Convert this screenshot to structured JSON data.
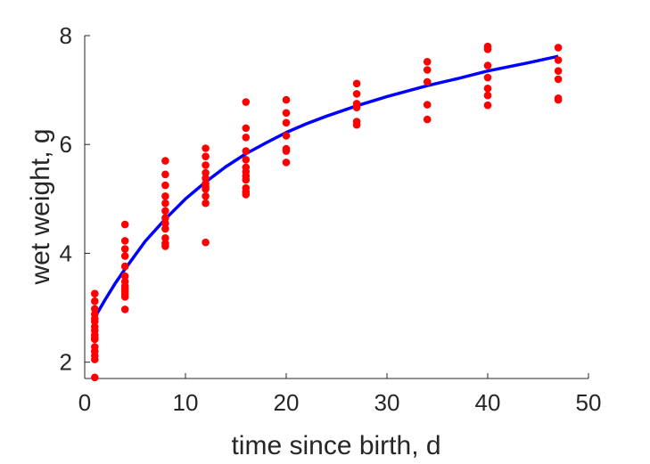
{
  "chart_data": {
    "type": "scatter",
    "xlabel": "time since birth, d",
    "ylabel": "wet weight, g",
    "xlim": [
      0,
      50
    ],
    "ylim": [
      1.7,
      8
    ],
    "xticks": [
      0,
      10,
      20,
      30,
      40,
      50
    ],
    "yticks": [
      2,
      4,
      6,
      8
    ],
    "grid": false,
    "legend": "none",
    "colors": {
      "points": "#ff0000",
      "fit": "#0000ff",
      "axis": "#262626"
    },
    "series": [
      {
        "type": "scatter",
        "x": [
          1,
          1,
          1,
          1,
          1,
          1,
          1,
          1,
          1,
          1,
          1,
          1,
          1,
          1,
          1,
          1,
          4,
          4,
          4,
          4,
          4,
          4,
          4,
          4,
          4,
          4,
          4,
          4,
          4,
          8,
          8,
          8,
          8,
          8,
          8,
          8,
          8,
          8,
          8,
          8,
          8,
          12,
          12,
          12,
          12,
          12,
          12,
          12,
          12,
          12,
          12,
          12,
          16,
          16,
          16,
          16,
          16,
          16,
          16,
          16,
          16,
          16,
          16,
          16,
          20,
          20,
          20,
          20,
          20,
          20,
          20,
          27,
          27,
          27,
          27,
          27,
          27,
          34,
          34,
          34,
          34,
          34,
          40,
          40,
          40,
          40,
          40,
          40,
          40,
          47,
          47,
          47,
          47,
          47,
          47
        ],
        "y": [
          3.26,
          3.12,
          2.98,
          2.88,
          2.8,
          2.75,
          2.65,
          2.58,
          2.5,
          2.45,
          2.42,
          2.28,
          2.2,
          2.12,
          2.05,
          1.72,
          4.53,
          4.23,
          4.08,
          3.95,
          3.76,
          3.58,
          3.48,
          3.4,
          3.35,
          3.3,
          3.25,
          3.2,
          2.97,
          5.7,
          5.45,
          5.25,
          5.05,
          4.92,
          4.78,
          4.65,
          4.55,
          4.45,
          4.28,
          4.18,
          4.13,
          5.93,
          5.78,
          5.62,
          5.48,
          5.38,
          5.28,
          5.22,
          5.18,
          5.05,
          4.92,
          4.2,
          6.78,
          6.3,
          6.13,
          5.88,
          5.72,
          5.58,
          5.5,
          5.42,
          5.35,
          5.2,
          5.13,
          5.08,
          6.82,
          6.58,
          6.4,
          6.16,
          5.92,
          5.88,
          5.67,
          7.12,
          6.93,
          6.75,
          6.68,
          6.42,
          6.36,
          7.52,
          7.37,
          7.15,
          6.73,
          6.46,
          7.8,
          7.75,
          7.45,
          7.23,
          7.03,
          6.9,
          6.72,
          7.78,
          7.55,
          7.35,
          7.2,
          6.85,
          6.82
        ]
      },
      {
        "type": "line",
        "x": [
          1,
          2,
          3,
          4,
          6,
          8,
          10,
          12,
          14,
          16,
          18,
          20,
          22,
          24,
          27,
          30,
          34,
          37,
          40,
          44,
          47
        ],
        "y": [
          2.82,
          3.14,
          3.44,
          3.71,
          4.22,
          4.63,
          5.0,
          5.31,
          5.59,
          5.83,
          6.03,
          6.22,
          6.38,
          6.52,
          6.71,
          6.88,
          7.08,
          7.21,
          7.35,
          7.5,
          7.62
        ]
      }
    ]
  }
}
